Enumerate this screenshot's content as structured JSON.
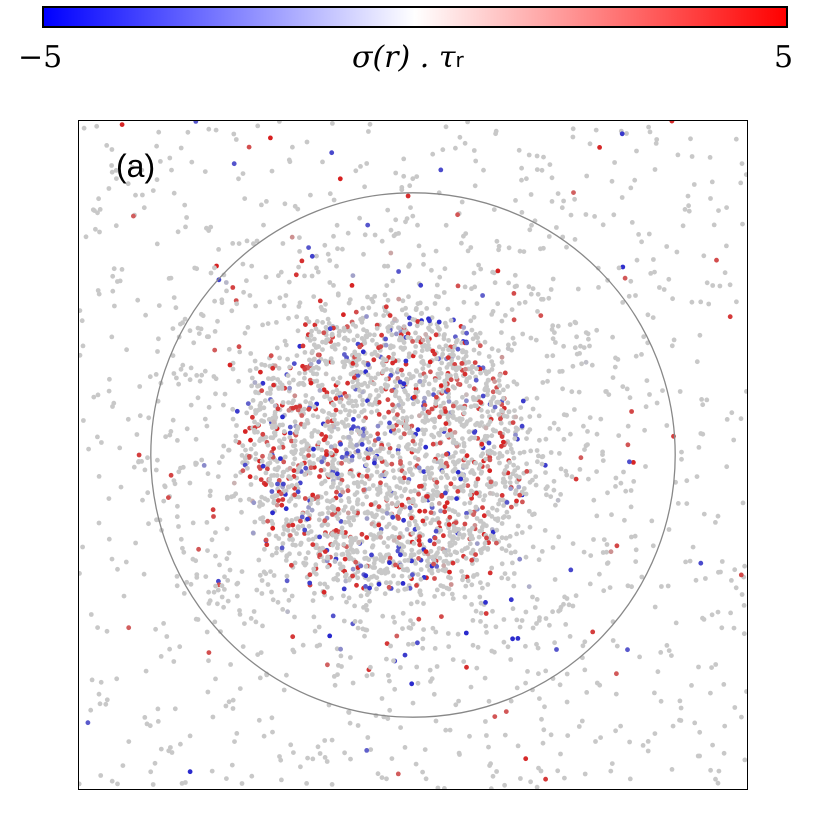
{
  "colorbar": {
    "min_label": "−5",
    "max_label": "5",
    "title_main": "σ(r) . τ",
    "title_sub": "r",
    "colors": {
      "low": "#0000ff",
      "mid": "#ffffff",
      "high": "#ff0000"
    },
    "range": [
      -5,
      5
    ]
  },
  "panel": {
    "label": "(a)"
  },
  "chart_data": {
    "type": "scatter",
    "title": "",
    "xlabel": "",
    "ylabel": "",
    "panel_label": "(a)",
    "colormap": "bwr",
    "color_range": [
      -5,
      5
    ],
    "xlim": [
      -1,
      1
    ],
    "ylim": [
      -1,
      1
    ],
    "grid": false,
    "reference_circle_radius": 0.785,
    "neutral_color": "#c8c8c8",
    "dense_cluster": {
      "center": [
        -0.08,
        0.01
      ],
      "radius": 0.42,
      "point_count": 2200
    },
    "sparse_background_point_count": 1100,
    "seed": 7
  }
}
